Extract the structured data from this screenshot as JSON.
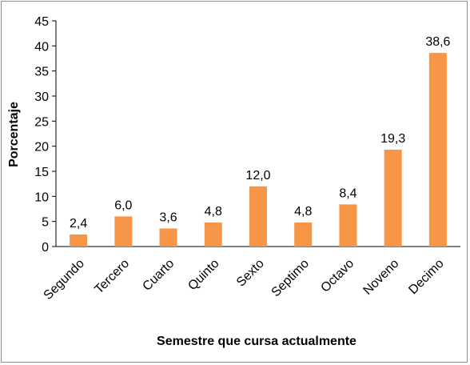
{
  "chart_data": {
    "type": "bar",
    "categories": [
      "Segundo",
      "Tercero",
      "Cuarto",
      "Quinto",
      "Sexto",
      "Septimo",
      "Octavo",
      "Noveno",
      "Decimo"
    ],
    "values": [
      2.4,
      6.0,
      3.6,
      4.8,
      12.0,
      4.8,
      8.4,
      19.3,
      38.6
    ],
    "data_labels": [
      "2,4",
      "6,0",
      "3,6",
      "4,8",
      "12,0",
      "4,8",
      "8,4",
      "19,3",
      "38,6"
    ],
    "xlabel": "Semestre que cursa actualmente",
    "ylabel": "Porcentaje",
    "ylim": [
      0,
      45
    ],
    "yticks": [
      0,
      5,
      10,
      15,
      20,
      25,
      30,
      35,
      40,
      45
    ],
    "ytick_labels": [
      "0",
      "5",
      "10",
      "15",
      "20",
      "25",
      "30",
      "35",
      "40",
      "45"
    ],
    "grid": false,
    "legend": "none",
    "bar_color": "#F79646"
  }
}
